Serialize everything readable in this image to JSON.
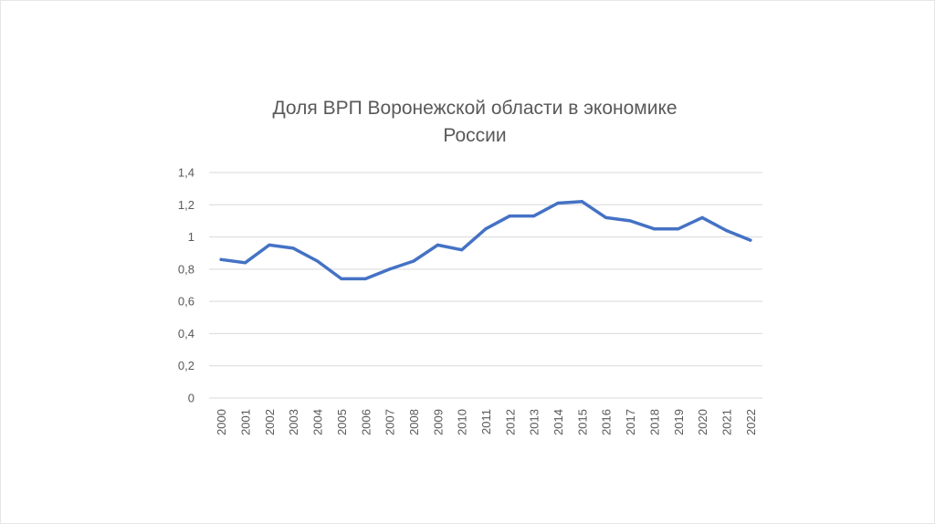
{
  "chart_data": {
    "type": "line",
    "title": "Доля ВРП Воронежской области в экономике\nРоссии",
    "xlabel": "",
    "ylabel": "",
    "categories": [
      "2000",
      "2001",
      "2002",
      "2003",
      "2004",
      "2005",
      "2006",
      "2007",
      "2008",
      "2009",
      "2010",
      "2011",
      "2012",
      "2013",
      "2014",
      "2015",
      "2016",
      "2017",
      "2018",
      "2019",
      "2020",
      "2021",
      "2022"
    ],
    "series": [
      {
        "values": [
          0.86,
          0.84,
          0.95,
          0.93,
          0.85,
          0.74,
          0.74,
          0.8,
          0.85,
          0.95,
          0.92,
          1.05,
          1.13,
          1.13,
          1.21,
          1.22,
          1.12,
          1.1,
          1.05,
          1.05,
          1.12,
          1.04,
          0.98
        ],
        "color": "#4472c4"
      }
    ],
    "yticks": [
      "0",
      "0,2",
      "0,4",
      "0,6",
      "0,8",
      "1",
      "1,2",
      "1,4"
    ],
    "ylim": [
      0,
      1.4
    ],
    "grid": true,
    "legend": "none"
  }
}
